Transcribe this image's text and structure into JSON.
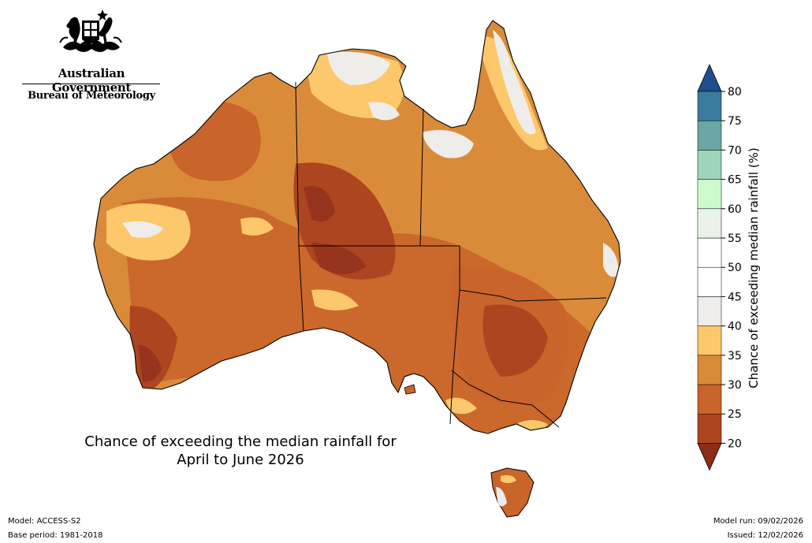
{
  "branding": {
    "government": "Australian Government",
    "agency": "Bureau of Meteorology"
  },
  "map": {
    "title_line1": "Chance of exceeding the median rainfall for",
    "title_line2": "April to June 2026",
    "colors": {
      "c20_25": "#ad4520",
      "c25_30": "#c9642b",
      "c30_35": "#d98b3a",
      "c35_40": "#fcc86b",
      "c40_45": "#efedea",
      "dark": "#96341d"
    }
  },
  "colorbar": {
    "label": "Chance of exceeding median rainfall (%)",
    "ticks": [
      "20",
      "25",
      "30",
      "35",
      "40",
      "45",
      "50",
      "55",
      "60",
      "65",
      "70",
      "75",
      "80"
    ],
    "bins": [
      "#ad4520",
      "#c9642b",
      "#d98b3a",
      "#fcc86b",
      "#efedea",
      "#ffffff",
      "#ffffff",
      "#e9f3e9",
      "#ccfacc",
      "#9ed4bb",
      "#6aa6a4",
      "#3b7b9e"
    ],
    "under_color": "#8c2d18",
    "over_color": "#1e4e8c"
  },
  "footer": {
    "model": "Model: ACCESS-S2",
    "base_period": "Base period: 1981-2018",
    "model_run": "Model run: 09/02/2026",
    "issued": "Issued: 12/02/2026"
  }
}
